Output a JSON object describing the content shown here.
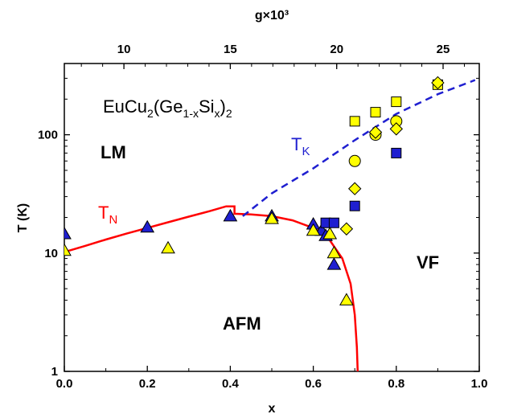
{
  "chart_data": {
    "type": "scatter",
    "title": "",
    "xlabel": "x",
    "ylabel": "T (K)",
    "x2label": "g×10³",
    "xlim": [
      0.0,
      1.0
    ],
    "ylim": [
      1,
      400
    ],
    "yscale": "log",
    "x_ticks": [
      "0.0",
      "0.2",
      "0.4",
      "0.6",
      "0.8",
      "1.0"
    ],
    "y_ticks": [
      "1",
      "10",
      "100"
    ],
    "x2_ticks": [
      "10",
      "15",
      "20",
      "25"
    ],
    "formula": {
      "prefix": "EuCu",
      "sub1": "2",
      "mid": "(Ge",
      "sub2": "1-x",
      "mid2": "Si",
      "sub3": "x",
      "close": ")",
      "sub4": "2"
    },
    "regions": {
      "lm": "LM",
      "afm": "AFM",
      "vf": "VF"
    },
    "curves": {
      "tn": {
        "label": "T",
        "sub": "N",
        "color": "#ff0000",
        "points": [
          [
            0,
            10.2
          ],
          [
            0.05,
            11.5
          ],
          [
            0.1,
            13.0
          ],
          [
            0.15,
            14.6
          ],
          [
            0.2,
            16.3
          ],
          [
            0.25,
            18.2
          ],
          [
            0.3,
            20.3
          ],
          [
            0.35,
            22.6
          ],
          [
            0.39,
            24.8
          ],
          [
            0.41,
            24.8
          ],
          [
            0.41,
            21.5
          ],
          [
            0.45,
            21.2
          ],
          [
            0.5,
            20.5
          ],
          [
            0.55,
            18.9
          ],
          [
            0.6,
            16.3
          ],
          [
            0.64,
            12.8
          ],
          [
            0.67,
            9.0
          ],
          [
            0.69,
            5.5
          ],
          [
            0.7,
            3.0
          ],
          [
            0.705,
            1.6
          ],
          [
            0.707,
            1.0
          ]
        ]
      },
      "tk": {
        "label": "T",
        "sub": "K",
        "color": "#1f1fd0",
        "points": [
          [
            0.43,
            20.5
          ],
          [
            0.5,
            32
          ],
          [
            0.6,
            52
          ],
          [
            0.7,
            90
          ],
          [
            0.8,
            150
          ],
          [
            0.9,
            220
          ],
          [
            0.99,
            290
          ]
        ]
      }
    },
    "series": [
      {
        "marker": "triangle",
        "color": "#1f1fd0",
        "points": [
          [
            0.0,
            14.5
          ],
          [
            0.2,
            16.5
          ],
          [
            0.4,
            20.5
          ],
          [
            0.5,
            20.5
          ],
          [
            0.6,
            17.5
          ],
          [
            0.62,
            15.5
          ],
          [
            0.63,
            14.0
          ],
          [
            0.65,
            8.0
          ]
        ]
      },
      {
        "marker": "triangle",
        "color": "#ffff00",
        "points": [
          [
            0.0,
            10.5
          ],
          [
            0.25,
            11.0
          ],
          [
            0.5,
            19.5
          ],
          [
            0.6,
            15.5
          ],
          [
            0.64,
            14.5
          ],
          [
            0.65,
            10.0
          ],
          [
            0.68,
            4.0
          ]
        ]
      },
      {
        "marker": "square",
        "color": "#1f1fd0",
        "points": [
          [
            0.63,
            18
          ],
          [
            0.65,
            18
          ],
          [
            0.7,
            25
          ],
          [
            0.8,
            70
          ]
        ]
      },
      {
        "marker": "square",
        "color": "#ffff00",
        "points": [
          [
            0.7,
            130
          ],
          [
            0.75,
            155
          ],
          [
            0.8,
            190
          ],
          [
            0.9,
            265
          ]
        ]
      },
      {
        "marker": "circle",
        "color": "#ffff00",
        "points": [
          [
            0.7,
            60
          ],
          [
            0.75,
            100
          ],
          [
            0.8,
            130
          ]
        ]
      },
      {
        "marker": "diamond",
        "color": "#ffff00",
        "points": [
          [
            0.68,
            16
          ],
          [
            0.7,
            35
          ],
          [
            0.75,
            105
          ],
          [
            0.8,
            112
          ],
          [
            0.9,
            275
          ]
        ]
      }
    ]
  }
}
